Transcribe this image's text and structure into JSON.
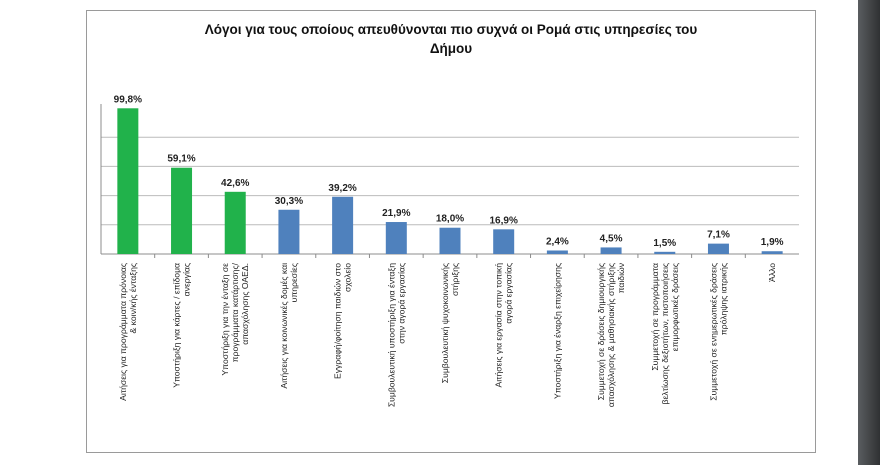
{
  "chart_data": {
    "type": "bar",
    "title_lines": [
      "Λόγοι για τους οποίους απευθύνονται πιο συχνά οι Ρομά στις υπηρεσίες του",
      "Δήμου"
    ],
    "xlabel": "",
    "ylabel": "",
    "ylim": [
      0,
      100
    ],
    "grid": true,
    "categories": [
      [
        "Αιτήσεις για προγράμματα πρόνοιας",
        "& κοιν/κής ένταξης"
      ],
      [
        "Υποστήριξη για κάρτες / επίδομα",
        "ανεργίας"
      ],
      [
        "Υποστήριξη για την ένταξη σε",
        "προγράμματα κατάρτισης/",
        "απασχόλησης ΟΑΕΔ."
      ],
      [
        "Αιτήσεις για κοινωνικές δομές και",
        "υπηρεσίες"
      ],
      [
        "Εγγραφή/φοίτηση παιδιών στο",
        "σχολείο"
      ],
      [
        "Συμβουλευτική υποστήριξη για ένταξη",
        "στην αγορά εργασίας"
      ],
      [
        "Συμβουλευτική ψυχοκοινωνικής",
        "στήριξης"
      ],
      [
        "Αιτήσεις για εργασία στην τοπική",
        "αγορά εργασίας"
      ],
      [
        "Υποστήριξη για έναρξη επιχείρησης"
      ],
      [
        "Συμμετοχή σε δράσεις δημιουργικής",
        "απασχόλησης & μαθησιακής στήριξης",
        "παιδιών"
      ],
      [
        "Συμμετοχή σε προγράμματα",
        "βελτίωσης δεξιοτήτων, πιστοποιήσεις",
        "επιμορφωτικές δράσεις"
      ],
      [
        "Συμμετοχή σε ενημερωτικές δράσεις",
        "πρόληψης ιατρικής"
      ],
      [
        "Άλλο"
      ]
    ],
    "values": [
      99.8,
      59.1,
      42.6,
      30.3,
      39.2,
      21.9,
      18.0,
      16.9,
      2.4,
      4.5,
      1.5,
      7.1,
      1.9
    ],
    "labels": [
      "99,8%",
      "59,1%",
      "42,6%",
      "30,3%",
      "39,2%",
      "21,9%",
      "18,0%",
      "16,9%",
      "2,4%",
      "4,5%",
      "1,5%",
      "7,1%",
      "1,9%"
    ],
    "highlight": [
      true,
      true,
      true,
      false,
      false,
      false,
      false,
      false,
      false,
      false,
      false,
      false,
      false
    ],
    "colors": {
      "highlight": "#21b24b",
      "normal": "#4f81bd",
      "grid": "#bcbcbc",
      "axis": "#8c8c8c"
    }
  }
}
